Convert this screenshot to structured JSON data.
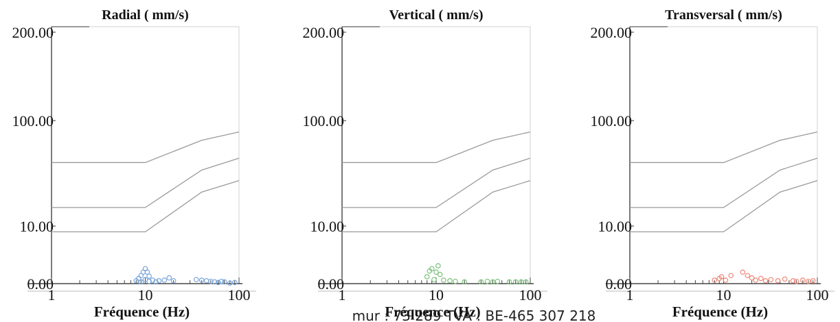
{
  "chart_data": [
    {
      "type": "scatter",
      "title": "Radial ( mm/s)",
      "xlabel": "Fréquence (Hz)",
      "x_scale": "log",
      "xlim": [
        1,
        100
      ],
      "y_ticks": [
        "200.00",
        "100.00",
        "10.00",
        "0.00"
      ],
      "x_ticks": [
        "1",
        "10",
        "100"
      ],
      "marker_color": "#7aa6dc",
      "limit_curves": [
        {
          "x": [
            1,
            10,
            40,
            100
          ],
          "y": [
            40,
            40,
            65,
            78
          ]
        },
        {
          "x": [
            1,
            10,
            40,
            100
          ],
          "y": [
            15,
            15,
            34,
            44
          ]
        },
        {
          "x": [
            1,
            10,
            40,
            100
          ],
          "y": [
            9,
            9,
            21,
            27
          ]
        }
      ],
      "points": [
        {
          "x": 8,
          "y": 0.5
        },
        {
          "x": 8.5,
          "y": 0.9
        },
        {
          "x": 9,
          "y": 1.4
        },
        {
          "x": 9.5,
          "y": 2.0
        },
        {
          "x": 10,
          "y": 2.6
        },
        {
          "x": 10.5,
          "y": 2.0
        },
        {
          "x": 11,
          "y": 1.3
        },
        {
          "x": 9,
          "y": 0.3
        },
        {
          "x": 10,
          "y": 0.7
        },
        {
          "x": 11,
          "y": 0.4
        },
        {
          "x": 12,
          "y": 0.6
        },
        {
          "x": 13,
          "y": 0.3
        },
        {
          "x": 14,
          "y": 0.5
        },
        {
          "x": 16,
          "y": 0.6
        },
        {
          "x": 18,
          "y": 1.0
        },
        {
          "x": 20,
          "y": 0.5
        },
        {
          "x": 35,
          "y": 0.7
        },
        {
          "x": 40,
          "y": 0.6
        },
        {
          "x": 45,
          "y": 0.5
        },
        {
          "x": 50,
          "y": 0.4
        },
        {
          "x": 55,
          "y": 0.3
        },
        {
          "x": 60,
          "y": 0.2
        },
        {
          "x": 65,
          "y": 0.4
        },
        {
          "x": 70,
          "y": 0.3
        },
        {
          "x": 80,
          "y": 0.1
        },
        {
          "x": 90,
          "y": 0.2
        }
      ]
    },
    {
      "type": "scatter",
      "title": "Vertical ( mm/s)",
      "xlabel": "Fréquence (Hz)",
      "x_scale": "log",
      "xlim": [
        1,
        100
      ],
      "y_ticks": [
        "200.00",
        "100.00",
        "10.00",
        "0.00"
      ],
      "x_ticks": [
        "1",
        "10",
        "100"
      ],
      "marker_color": "#7cc07c",
      "limit_curves": [
        {
          "x": [
            1,
            10,
            40,
            100
          ],
          "y": [
            40,
            40,
            65,
            78
          ]
        },
        {
          "x": [
            1,
            10,
            40,
            100
          ],
          "y": [
            15,
            15,
            34,
            44
          ]
        },
        {
          "x": [
            1,
            10,
            40,
            100
          ],
          "y": [
            9,
            9,
            21,
            27
          ]
        }
      ],
      "points": [
        {
          "x": 8,
          "y": 1.2
        },
        {
          "x": 8.5,
          "y": 2.2
        },
        {
          "x": 9,
          "y": 2.6
        },
        {
          "x": 10,
          "y": 2.0
        },
        {
          "x": 10.5,
          "y": 3.1
        },
        {
          "x": 11,
          "y": 1.6
        },
        {
          "x": 9.5,
          "y": 0.7
        },
        {
          "x": 12,
          "y": 0.6
        },
        {
          "x": 14,
          "y": 0.5
        },
        {
          "x": 16,
          "y": 0.4
        },
        {
          "x": 20,
          "y": 0.3
        },
        {
          "x": 30,
          "y": 0.3
        },
        {
          "x": 35,
          "y": 0.4
        },
        {
          "x": 40,
          "y": 0.3
        },
        {
          "x": 45,
          "y": 0.4
        },
        {
          "x": 60,
          "y": 0.3
        },
        {
          "x": 70,
          "y": 0.3
        },
        {
          "x": 80,
          "y": 0.3
        },
        {
          "x": 90,
          "y": 0.3
        }
      ]
    },
    {
      "type": "scatter",
      "title": "Transversal ( mm/s)",
      "xlabel": "Fréquence (Hz)",
      "x_scale": "log",
      "xlim": [
        1,
        100
      ],
      "y_ticks": [
        "200.00",
        "100.00",
        "10.00",
        "0.00"
      ],
      "x_ticks": [
        "1",
        "10",
        "100"
      ],
      "marker_color": "#ee8877",
      "limit_curves": [
        {
          "x": [
            1,
            10,
            40,
            100
          ],
          "y": [
            40,
            40,
            65,
            78
          ]
        },
        {
          "x": [
            1,
            10,
            40,
            100
          ],
          "y": [
            15,
            15,
            34,
            44
          ]
        },
        {
          "x": [
            1,
            10,
            40,
            100
          ],
          "y": [
            9,
            9,
            21,
            27
          ]
        }
      ],
      "points": [
        {
          "x": 8,
          "y": 0.6
        },
        {
          "x": 9,
          "y": 0.9
        },
        {
          "x": 9.5,
          "y": 1.2
        },
        {
          "x": 10.5,
          "y": 0.6
        },
        {
          "x": 12,
          "y": 1.4
        },
        {
          "x": 16,
          "y": 2.0
        },
        {
          "x": 18,
          "y": 1.4
        },
        {
          "x": 20,
          "y": 1.0
        },
        {
          "x": 22,
          "y": 0.6
        },
        {
          "x": 25,
          "y": 0.9
        },
        {
          "x": 28,
          "y": 0.5
        },
        {
          "x": 32,
          "y": 0.7
        },
        {
          "x": 38,
          "y": 0.5
        },
        {
          "x": 45,
          "y": 0.8
        },
        {
          "x": 55,
          "y": 0.5
        },
        {
          "x": 60,
          "y": 0.4
        },
        {
          "x": 70,
          "y": 0.6
        },
        {
          "x": 80,
          "y": 0.4
        },
        {
          "x": 90,
          "y": 0.5
        }
      ]
    }
  ],
  "footer": {
    "text": "mur : 73 289     TVA : BE-465 307 218"
  }
}
